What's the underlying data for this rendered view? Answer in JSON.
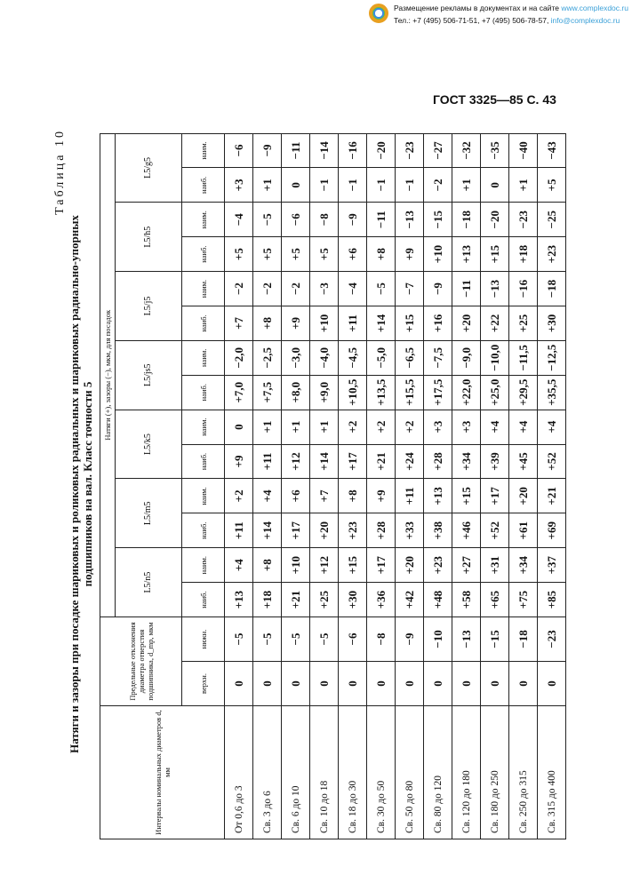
{
  "ad": {
    "line1": "Размещение рекламы в документах и на сайте ",
    "site": "www.complexdoc.ru",
    "line2": "Тел.: +7 (495) 506-71-51, +7 (495) 506-78-57, ",
    "email": "info@complexdoc.ru"
  },
  "page_header": "ГОСТ 3325—85 С. 43",
  "table_no": "Таблица 10",
  "title1": "Натяги и зазоры при посадке шариковых и роликовых радиальных и шариковых радиально-упорных",
  "title2": "подшипников на вал. Класс точности 5",
  "headers": {
    "interval": "Интервалы номинальных диаметров d, мм",
    "deviation": "Предельные отклонения диаметра отверстия подшипника, d_mp, мкм",
    "upper": "верхн.",
    "lower": "нижн.",
    "fits_caption": "Натяги (+), зазоры (−), мкм, для посадок",
    "max": "наиб.",
    "min": "наим.",
    "fits": [
      "L5/n5",
      "L5/m5",
      "L5/k5",
      "L5/js5",
      "L5/j5",
      "L5/h5",
      "L5/g5"
    ]
  },
  "rows": [
    {
      "interval": "От 0,6 до 3",
      "v": [
        "0",
        "−5",
        "+13",
        "+4",
        "+11",
        "+2",
        "+9",
        "0",
        "+7,0",
        "−2,0",
        "+7",
        "−2",
        "+5",
        "−4",
        "+3",
        "−6"
      ]
    },
    {
      "interval": "Св. 3 до 6",
      "v": [
        "0",
        "−5",
        "+18",
        "+8",
        "+14",
        "+4",
        "+11",
        "+1",
        "+7,5",
        "−2,5",
        "+8",
        "−2",
        "+5",
        "−5",
        "+1",
        "−9"
      ]
    },
    {
      "interval": "Св. 6 до 10",
      "v": [
        "0",
        "−5",
        "+21",
        "+10",
        "+17",
        "+6",
        "+12",
        "+1",
        "+8,0",
        "−3,0",
        "+9",
        "−2",
        "+5",
        "−6",
        "0",
        "−11"
      ]
    },
    {
      "interval": "Св. 10 до 18",
      "v": [
        "0",
        "−5",
        "+25",
        "+12",
        "+20",
        "+7",
        "+14",
        "+1",
        "+9,0",
        "−4,0",
        "+10",
        "−3",
        "+5",
        "−8",
        "−1",
        "−14"
      ]
    },
    {
      "interval": "Св. 18 до 30",
      "v": [
        "0",
        "−6",
        "+30",
        "+15",
        "+23",
        "+8",
        "+17",
        "+2",
        "+10,5",
        "−4,5",
        "+11",
        "−4",
        "+6",
        "−9",
        "−1",
        "−16"
      ]
    },
    {
      "interval": "Св. 30 до 50",
      "v": [
        "0",
        "−8",
        "+36",
        "+17",
        "+28",
        "+9",
        "+21",
        "+2",
        "+13,5",
        "−5,0",
        "+14",
        "−5",
        "+8",
        "−11",
        "−1",
        "−20"
      ]
    },
    {
      "interval": "Св. 50 до 80",
      "v": [
        "0",
        "−9",
        "+42",
        "+20",
        "+33",
        "+11",
        "+24",
        "+2",
        "+15,5",
        "−6,5",
        "+15",
        "−7",
        "+9",
        "−13",
        "−1",
        "−23"
      ]
    },
    {
      "interval": "Св. 80 до 120",
      "v": [
        "0",
        "−10",
        "+48",
        "+23",
        "+38",
        "+13",
        "+28",
        "+3",
        "+17,5",
        "−7,5",
        "+16",
        "−9",
        "+10",
        "−15",
        "−2",
        "−27"
      ]
    },
    {
      "interval": "Св. 120 до 180",
      "v": [
        "0",
        "−13",
        "+58",
        "+27",
        "+46",
        "+15",
        "+34",
        "+3",
        "+22,0",
        "−9,0",
        "+20",
        "−11",
        "+13",
        "−18",
        "+1",
        "−32"
      ]
    },
    {
      "interval": "Св. 180 до 250",
      "v": [
        "0",
        "−15",
        "+65",
        "+31",
        "+52",
        "+17",
        "+39",
        "+4",
        "+25,0",
        "−10,0",
        "+22",
        "−13",
        "+15",
        "−20",
        "0",
        "−35"
      ]
    },
    {
      "interval": "Св. 250 до 315",
      "v": [
        "0",
        "−18",
        "+75",
        "+34",
        "+61",
        "+20",
        "+45",
        "+4",
        "+29,5",
        "−11,5",
        "+25",
        "−16",
        "+18",
        "−23",
        "+1",
        "−40"
      ]
    },
    {
      "interval": "Св. 315 до 400",
      "v": [
        "0",
        "−23",
        "+85",
        "+37",
        "+69",
        "+21",
        "+52",
        "+4",
        "+35,5",
        "−12,5",
        "+30",
        "−18",
        "+23",
        "−25",
        "+5",
        "−43"
      ]
    }
  ]
}
